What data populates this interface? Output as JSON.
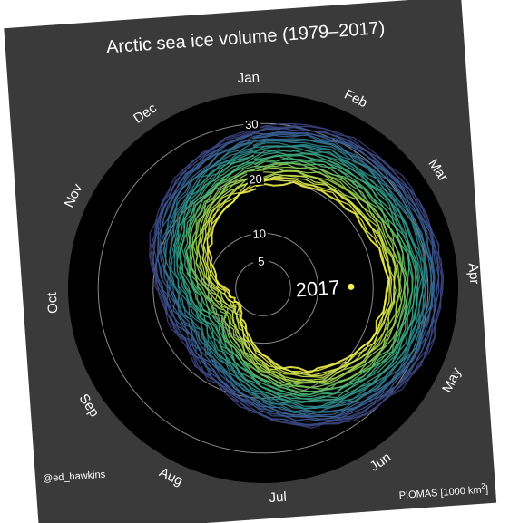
{
  "chart_data": {
    "type": "line",
    "subtype": "polar-spiral",
    "title": "Arctic sea ice volume (1979–2017)",
    "source_label": "PIOMAS [1000 km",
    "source_unit_sup": "2",
    "source_label_close": "]",
    "credit": "@ed_hawkins",
    "highlight_year_label": "2017",
    "months": [
      "Jan",
      "Feb",
      "Mar",
      "Apr",
      "May",
      "Jun",
      "Jul",
      "Aug",
      "Sep",
      "Oct",
      "Nov",
      "Dec"
    ],
    "radial_ticks": [
      5,
      10,
      20,
      30
    ],
    "radial_tick_labels": [
      "5",
      "10",
      "20",
      "30"
    ],
    "r_range": [
      0,
      33
    ],
    "start_year": 1979,
    "end_year": 2017,
    "colorscale": [
      "#3b3f7a",
      "#3a5f93",
      "#2c8a8c",
      "#3fb17a",
      "#9fd24d",
      "#f0ef4a"
    ],
    "series_first_year": {
      "year": 1979,
      "monthly_volume": [
        29.0,
        31.5,
        32.5,
        32.8,
        31.8,
        29.0,
        24.0,
        19.5,
        17.5,
        19.0,
        22.5,
        26.0
      ]
    },
    "series_last_year": {
      "year": 2017,
      "monthly_volume": [
        18.5,
        20.5,
        21.5,
        22.5,
        21.5,
        18.0,
        13.0,
        7.5,
        4.8,
        6.5,
        10.5,
        15.0
      ]
    }
  }
}
